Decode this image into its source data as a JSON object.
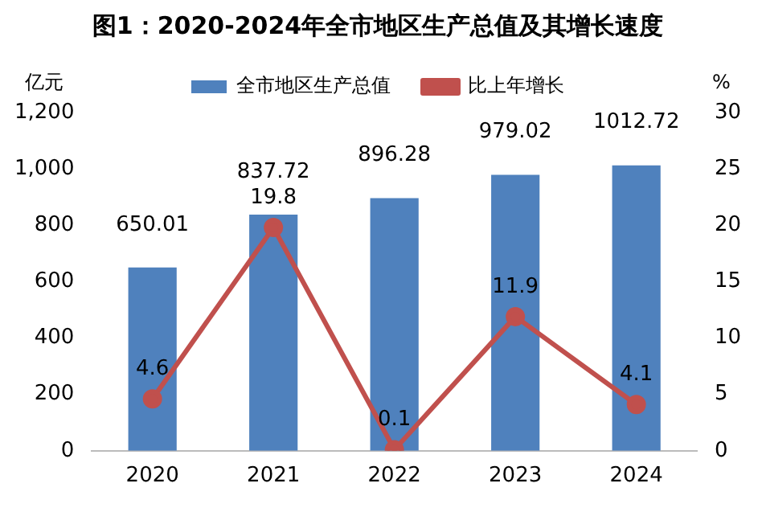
{
  "chart_data": {
    "type": "bar",
    "title": "图1：2020-2024年全市地区生产总值及其增长速度",
    "ylabel": "亿元",
    "y2label": "%",
    "categories": [
      "2020",
      "2021",
      "2022",
      "2023",
      "2024"
    ],
    "series": [
      {
        "name": "全市地区生产总值",
        "color": "#4f81bd",
        "values": [
          650.01,
          837.72,
          896.28,
          979.02,
          1012.72
        ]
      },
      {
        "name": "比上年增长",
        "type": "line",
        "axis": "y2",
        "color": "#c0504d",
        "marker": "circle",
        "values": [
          4.6,
          19.8,
          0.1,
          11.9,
          4.1
        ]
      }
    ],
    "ylim": [
      0,
      1200
    ],
    "yticks": [
      0,
      200,
      400,
      600,
      800,
      {
        "value": 1000,
        "label": "1,000"
      },
      {
        "value": 1200,
        "label": "1,200"
      }
    ],
    "y2lim": [
      0,
      30
    ],
    "y2ticks": [
      0,
      5,
      10,
      15,
      20,
      25,
      30
    ],
    "grid": false,
    "legend": "top",
    "data_labels": true
  }
}
